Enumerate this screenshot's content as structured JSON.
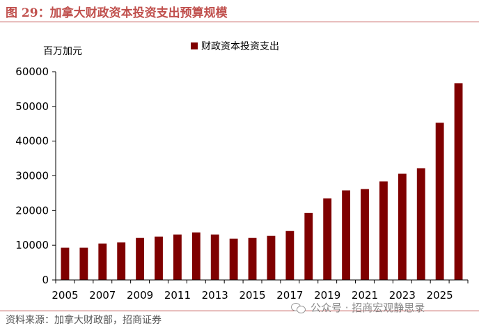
{
  "header": {
    "figure_title": "图 29：加拿大财政资本投资支出预算规模"
  },
  "footer": {
    "source": "资料来源：加拿大财政部，招商证券",
    "watermark": "公众号 · 招商宏观静思录",
    "watermark_icon": "wechat-icon"
  },
  "colors": {
    "accent": "#C0504D",
    "bar": "#7F0000",
    "axis": "#000000"
  },
  "chart_data": {
    "type": "bar",
    "title": "",
    "ylabel": "百万加元",
    "xlabel": "",
    "legend": [
      "财政资本投资支出"
    ],
    "legend_position": "top-center",
    "grid": false,
    "ylim": [
      0,
      60000
    ],
    "yticks": [
      0,
      10000,
      20000,
      30000,
      40000,
      50000,
      60000
    ],
    "categories": [
      "2005",
      "2006",
      "2007",
      "2008",
      "2009",
      "2010",
      "2011",
      "2012",
      "2013",
      "2014",
      "2015",
      "2016",
      "2017",
      "2018",
      "2019",
      "2020",
      "2021",
      "2022",
      "2023",
      "2024",
      "2025",
      "2026"
    ],
    "xtick_labels": [
      "2005",
      "2007",
      "2009",
      "2011",
      "2013",
      "2015",
      "2017",
      "2019",
      "2021",
      "2023",
      "2025"
    ],
    "series": [
      {
        "name": "财政资本投资支出",
        "values": [
          9300,
          9300,
          10500,
          10800,
          12100,
          12500,
          13100,
          13700,
          13100,
          11900,
          12100,
          12700,
          14100,
          19300,
          23500,
          25800,
          26200,
          28400,
          30600,
          32200,
          45300,
          56700
        ]
      }
    ]
  }
}
